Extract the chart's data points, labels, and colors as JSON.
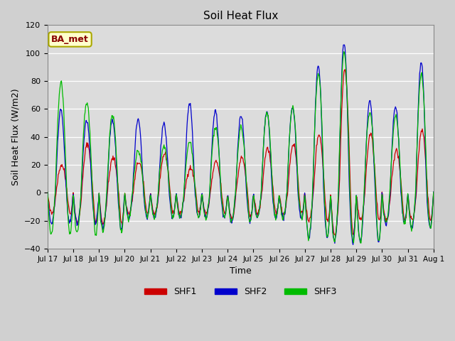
{
  "title": "Soil Heat Flux",
  "ylabel": "Soil Heat Flux (W/m2)",
  "xlabel": "Time",
  "ylim": [
    -40,
    120
  ],
  "series": [
    "SHF1",
    "SHF2",
    "SHF3"
  ],
  "colors": [
    "#cc0000",
    "#0000cc",
    "#00bb00"
  ],
  "annotation_text": "BA_met",
  "annotation_bg": "#ffffcc",
  "annotation_border": "#aaa800",
  "annotation_text_color": "#880000",
  "x_tick_labels": [
    "Jul 17",
    "Jul 18",
    "Jul 19",
    "Jul 20",
    "Jul 21",
    "Jul 22",
    "Jul 23",
    "Jul 24",
    "Jul 25",
    "Jul 26",
    "Jul 27",
    "Jul 28",
    "Jul 29",
    "Jul 30",
    "Jul 31",
    "Aug 1"
  ],
  "n_days": 15,
  "points_per_day": 48,
  "amp1": [
    20,
    35,
    25,
    22,
    28,
    18,
    22,
    25,
    32,
    35,
    42,
    88,
    42,
    30,
    45
  ],
  "amp2": [
    60,
    52,
    52,
    52,
    50,
    64,
    59,
    55,
    58,
    62,
    91,
    107,
    66,
    62,
    93
  ],
  "amp3": [
    79,
    65,
    56,
    30,
    33,
    36,
    47,
    47,
    57,
    61,
    85,
    100,
    58,
    55,
    85
  ],
  "trough1": [
    15,
    22,
    22,
    15,
    15,
    15,
    15,
    18,
    15,
    15,
    20,
    30,
    20,
    20,
    20
  ],
  "trough2": [
    22,
    22,
    26,
    18,
    18,
    18,
    18,
    20,
    18,
    18,
    32,
    35,
    35,
    22,
    25
  ],
  "trough3": [
    30,
    30,
    28,
    18,
    18,
    18,
    18,
    20,
    18,
    18,
    32,
    35,
    35,
    22,
    25
  ]
}
